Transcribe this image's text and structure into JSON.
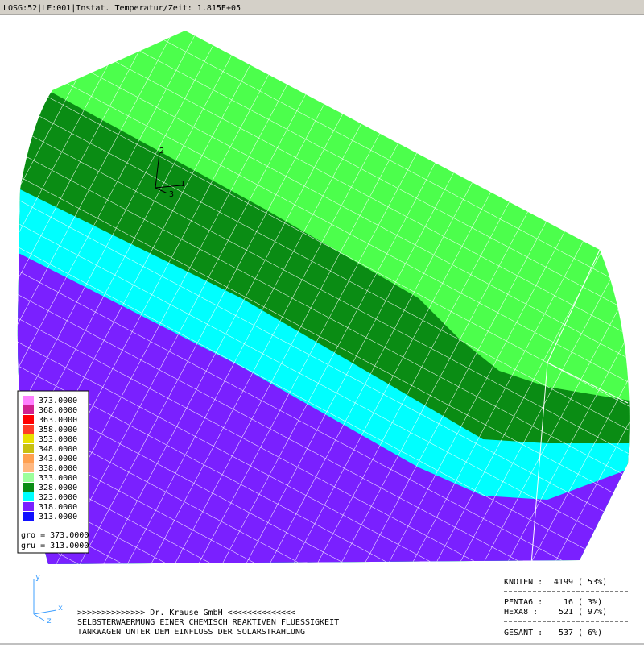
{
  "header": {
    "title": "LOSG:52|LF:001|Instat. Temperatur/Zeit: 1.815E+05"
  },
  "legend": {
    "entries": [
      {
        "label": "373.0000",
        "color": "#ff80ff"
      },
      {
        "label": "368.0000",
        "color": "#d0208f"
      },
      {
        "label": "363.0000",
        "color": "#ff0000"
      },
      {
        "label": "358.0000",
        "color": "#ff3c28"
      },
      {
        "label": "353.0000",
        "color": "#e8e000"
      },
      {
        "label": "348.0000",
        "color": "#c8c010"
      },
      {
        "label": "343.0000",
        "color": "#ffa050"
      },
      {
        "label": "338.0000",
        "color": "#ffb880"
      },
      {
        "label": "333.0000",
        "color": "#9cff9c"
      },
      {
        "label": "328.0000",
        "color": "#0a8c14"
      },
      {
        "label": "323.0000",
        "color": "#00ffff"
      },
      {
        "label": "318.0000",
        "color": "#7a20ff"
      },
      {
        "label": "313.0000",
        "color": "#1010ff"
      }
    ],
    "max": "gro = 373.0000",
    "min": "gru = 313.0000"
  },
  "triad": {
    "a1": "1",
    "a2": "2",
    "a3": "3"
  },
  "axes": {
    "x": "x",
    "y": "y",
    "z": "z"
  },
  "footer": {
    "lines": [
      ">>>>>>>>>>>>>>      Dr. Krause GmbH      <<<<<<<<<<<<<<",
      "SELBSTERWAERMUNG EINER CHEMISCH REAKTIVEN FLUESSIGKEIT",
      "TANKWAGEN UNTER DEM EINFLUSS DER SOLARSTRAHLUNG"
    ]
  },
  "stats": {
    "rows": [
      {
        "label": "KNOTEN  :",
        "count": "4199",
        "percent": "( 53%)"
      },
      {
        "label": "PENTA6  :",
        "count": "16",
        "percent": "(  3%)"
      },
      {
        "label": "HEXA8   :",
        "count": "521",
        "percent": "( 97%)"
      },
      {
        "label": "GESANT  :",
        "count": "537",
        "percent": "(  6%)"
      }
    ]
  }
}
